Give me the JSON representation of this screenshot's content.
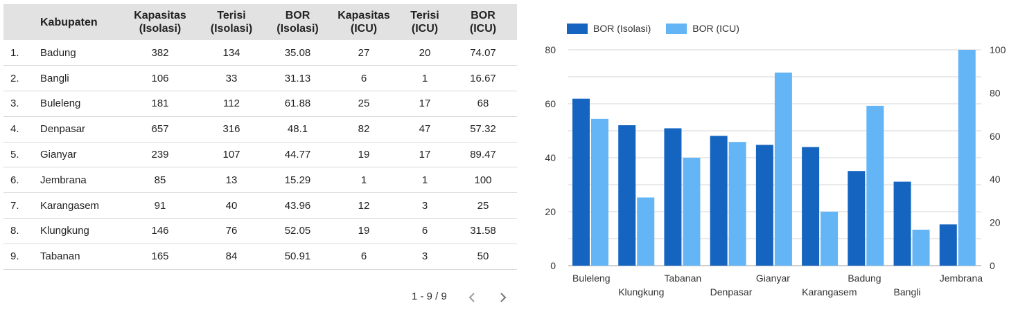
{
  "table": {
    "headers": {
      "kabupaten": "Kabupaten",
      "kap_iso_1": "Kapasitas",
      "kap_iso_2": "(Isolasi)",
      "ter_iso_1": "Terisi",
      "ter_iso_2": "(Isolasi)",
      "bor_iso_1": "BOR",
      "bor_iso_2": "(Isolasi)",
      "kap_icu_1": "Kapasitas",
      "kap_icu_2": "(ICU)",
      "ter_icu_1": "Terisi",
      "ter_icu_2": "(ICU)",
      "bor_icu_1": "BOR",
      "bor_icu_2": "(ICU)"
    },
    "rows": [
      [
        "1.",
        "Badung",
        "382",
        "134",
        "35.08",
        "27",
        "20",
        "74.07"
      ],
      [
        "2.",
        "Bangli",
        "106",
        "33",
        "31.13",
        "6",
        "1",
        "16.67"
      ],
      [
        "3.",
        "Buleleng",
        "181",
        "112",
        "61.88",
        "25",
        "17",
        "68"
      ],
      [
        "4.",
        "Denpasar",
        "657",
        "316",
        "48.1",
        "82",
        "47",
        "57.32"
      ],
      [
        "5.",
        "Gianyar",
        "239",
        "107",
        "44.77",
        "19",
        "17",
        "89.47"
      ],
      [
        "6.",
        "Jembrana",
        "85",
        "13",
        "15.29",
        "1",
        "1",
        "100"
      ],
      [
        "7.",
        "Karangasem",
        "91",
        "40",
        "43.96",
        "12",
        "3",
        "25"
      ],
      [
        "8.",
        "Klungkung",
        "146",
        "76",
        "52.05",
        "19",
        "6",
        "31.58"
      ],
      [
        "9.",
        "Tabanan",
        "165",
        "84",
        "50.91",
        "6",
        "3",
        "50"
      ]
    ]
  },
  "pagination": {
    "text": "1 - 9 / 9",
    "prev_icon": "chevron-left-icon",
    "next_icon": "chevron-right-icon"
  },
  "chart_data": {
    "type": "bar",
    "categories": [
      "Buleleng",
      "Klungkung",
      "Tabanan",
      "Denpasar",
      "Gianyar",
      "Karangasem",
      "Badung",
      "Bangli",
      "Jembrana"
    ],
    "series": [
      {
        "name": "BOR (Isolasi)",
        "values": [
          61.88,
          52.05,
          50.91,
          48.1,
          44.77,
          43.96,
          35.08,
          31.13,
          15.29
        ],
        "color": "#1565c0",
        "axis": "left"
      },
      {
        "name": "BOR (ICU)",
        "values": [
          68,
          31.58,
          50,
          57.32,
          89.47,
          25,
          74.07,
          16.67,
          100
        ],
        "color": "#64b5f6",
        "axis": "right"
      }
    ],
    "y_left": {
      "range": [
        0,
        80
      ],
      "ticks": [
        "0",
        "20",
        "40",
        "60",
        "80"
      ]
    },
    "y_right": {
      "range": [
        0,
        100
      ],
      "ticks": [
        "0",
        "20",
        "40",
        "60",
        "80",
        "100"
      ]
    },
    "grid": true,
    "legend_position": "top-left"
  }
}
